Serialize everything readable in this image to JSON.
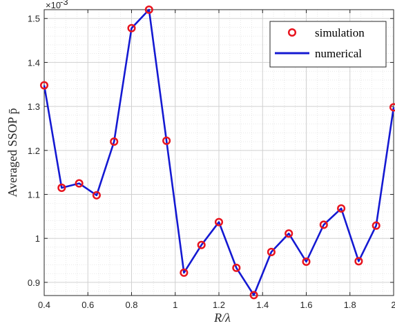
{
  "chart_data": {
    "type": "line",
    "xlabel": "R/λ",
    "ylabel": "Averaged SSOP p̄",
    "y_multiplier_label": "×10",
    "y_multiplier_exponent": "-3",
    "xlim": [
      0.4,
      2.0
    ],
    "ylim": [
      0.87,
      1.52
    ],
    "grid": true,
    "legend_position": "top-right",
    "x_ticks": [
      0.4,
      0.6,
      0.8,
      1.0,
      1.2,
      1.4,
      1.6,
      1.8,
      2.0
    ],
    "x_tick_labels": [
      "0.4",
      "0.6",
      "0.8",
      "1",
      "1.2",
      "1.4",
      "1.6",
      "1.8",
      "2"
    ],
    "y_ticks": [
      0.9,
      1.0,
      1.1,
      1.2,
      1.3,
      1.4,
      1.5
    ],
    "y_tick_labels": [
      "0.9",
      "1",
      "1.1",
      "1.2",
      "1.3",
      "1.4",
      "1.5"
    ],
    "x": [
      0.4,
      0.48,
      0.56,
      0.64,
      0.72,
      0.8,
      0.88,
      0.96,
      1.04,
      1.12,
      1.2,
      1.28,
      1.36,
      1.44,
      1.52,
      1.6,
      1.68,
      1.76,
      1.84,
      1.92,
      2.0
    ],
    "series": [
      {
        "name": "simulation",
        "style": "markers",
        "marker": "circle",
        "color": "#e8141e",
        "values": [
          1.348,
          1.115,
          1.125,
          1.098,
          1.22,
          1.478,
          1.52,
          1.222,
          0.922,
          0.985,
          1.037,
          0.933,
          0.871,
          0.969,
          1.011,
          0.947,
          1.031,
          1.068,
          0.948,
          1.029,
          1.298
        ]
      },
      {
        "name": "numerical",
        "style": "line",
        "color": "#1419d2",
        "values": [
          1.348,
          1.115,
          1.125,
          1.098,
          1.22,
          1.478,
          1.52,
          1.222,
          0.922,
          0.985,
          1.037,
          0.933,
          0.871,
          0.969,
          1.011,
          0.947,
          1.031,
          1.068,
          0.948,
          1.029,
          1.298
        ]
      }
    ]
  }
}
